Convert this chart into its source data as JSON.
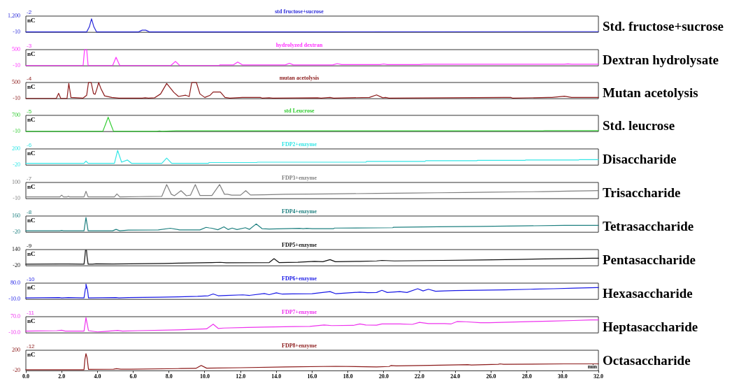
{
  "chart_data": [
    {
      "type": "line",
      "title": "std fructose+sucrose",
      "ylabel": "nC",
      "annotations": [
        "-2",
        "Std. fructose+sucrose"
      ],
      "color": "#2b2bd9",
      "marker": "none",
      "grid": false,
      "tick_labels": "y",
      "xlim": [
        0,
        32
      ],
      "ylim": [
        -10,
        1200
      ],
      "yticks": [
        {
          "value": 1200,
          "label": "1,200"
        },
        -10
      ],
      "x": [
        0,
        3.4,
        3.55,
        3.67,
        3.8,
        3.95,
        6.3,
        6.5,
        6.7,
        6.9,
        12.2,
        28.9,
        32
      ],
      "values": [
        20,
        20,
        400,
        1000,
        400,
        20,
        20,
        150,
        150,
        20,
        20,
        40,
        40
      ]
    },
    {
      "type": "line",
      "title": "hydrolyzed dextran",
      "ylabel": "nC",
      "annotations": [
        "-3",
        "Dextran hydrolysate"
      ],
      "color": "#ff33ff",
      "marker": "none",
      "grid": false,
      "tick_labels": "y",
      "xlim": [
        0,
        32
      ],
      "ylim": [
        -10,
        500
      ],
      "yticks": [
        500,
        -10
      ],
      "x": [
        0,
        3.2,
        3.28,
        3.33,
        3.4,
        3.48,
        4.85,
        5.04,
        5.25,
        8.1,
        8.36,
        8.6,
        10.8,
        10.85,
        11.6,
        11.84,
        12.1,
        14.5,
        14.73,
        14.95,
        17.15,
        17.4,
        17.65,
        19.8,
        20.0,
        20.2,
        22.0,
        22.25,
        22.5,
        28.7,
        28.9,
        29.1,
        30.1,
        30.3,
        30.5,
        30.8,
        32
      ],
      "values": [
        0,
        0,
        500,
        500,
        500,
        0,
        0,
        260,
        0,
        0,
        130,
        0,
        0,
        20,
        20,
        110,
        20,
        20,
        70,
        20,
        20,
        60,
        30,
        30,
        50,
        30,
        30,
        40,
        40,
        40,
        40,
        40,
        40,
        50,
        40,
        40,
        40
      ]
    },
    {
      "type": "line",
      "title": "mutan acetolysis",
      "ylabel": "nC",
      "annotations": [
        "-4",
        "Mutan acetolysis"
      ],
      "color": "#8b1a1a",
      "marker": "none",
      "grid": false,
      "tick_labels": "y",
      "xlim": [
        0,
        32
      ],
      "ylim": [
        -10,
        500
      ],
      "yticks": [
        500,
        -10
      ],
      "x": [
        0,
        1.7,
        1.83,
        1.95,
        2.3,
        2.4,
        2.52,
        3.2,
        3.4,
        3.5,
        3.65,
        3.78,
        3.87,
        3.97,
        4.07,
        4.2,
        4.4,
        4.8,
        5.2,
        6.5,
        6.67,
        6.85,
        7.2,
        7.53,
        7.87,
        8.27,
        8.53,
        8.93,
        9.13,
        9.27,
        9.53,
        9.73,
        10.0,
        10.3,
        10.47,
        10.87,
        11.13,
        11.4,
        12.1,
        13.1,
        13.2,
        13.6,
        13.8,
        16.3,
        16.5,
        17.0,
        17.2,
        19.2,
        19.6,
        19.95,
        20.1,
        20.3,
        26.7,
        27.1,
        27.2,
        29.2,
        29.4,
        30.1,
        30.5,
        32
      ],
      "values": [
        0,
        0,
        160,
        0,
        0,
        470,
        30,
        10,
        100,
        500,
        500,
        150,
        130,
        300,
        500,
        300,
        80,
        30,
        10,
        10,
        20,
        10,
        20,
        140,
        470,
        190,
        60,
        100,
        60,
        500,
        500,
        140,
        30,
        100,
        200,
        200,
        30,
        10,
        30,
        30,
        10,
        20,
        10,
        20,
        10,
        30,
        10,
        30,
        110,
        20,
        30,
        10,
        30,
        30,
        10,
        30,
        30,
        70,
        30,
        30
      ]
    },
    {
      "type": "line",
      "title": "std Leucrose",
      "ylabel": "nC",
      "annotations": [
        "-5",
        "Std. leucrose"
      ],
      "color": "#33cc33",
      "marker": "none",
      "grid": false,
      "tick_labels": "y",
      "xlim": [
        0,
        32
      ],
      "ylim": [
        -10,
        700
      ],
      "yticks": [
        700,
        -10
      ],
      "x": [
        0,
        4.3,
        4.45,
        4.6,
        4.75,
        4.9,
        7.3,
        7.47,
        7.6,
        8.4,
        28.9,
        29.0,
        32
      ],
      "values": [
        0,
        0,
        300,
        620,
        300,
        0,
        0,
        20,
        0,
        20,
        20,
        30,
        30
      ]
    },
    {
      "type": "line",
      "title": "FDP2+enzyme",
      "ylabel": "nC",
      "annotations": [
        "-6",
        "Disaccharide"
      ],
      "color": "#33e6e6",
      "marker": "none",
      "grid": false,
      "tick_labels": "y",
      "xlim": [
        0,
        32
      ],
      "ylim": [
        -20,
        200
      ],
      "yticks": [
        200,
        -20
      ],
      "x": [
        0,
        3.25,
        3.36,
        3.48,
        4.95,
        5.13,
        5.35,
        5.67,
        5.9,
        7.6,
        7.87,
        8.15,
        10.2,
        10.25,
        12.9,
        12.95,
        16.1,
        16.15,
        19.0,
        19.05,
        22.3,
        22.35,
        25.2,
        25.25,
        27.9,
        27.95,
        30.9,
        30.95,
        32
      ],
      "values": [
        5,
        5,
        35,
        5,
        5,
        180,
        20,
        50,
        5,
        5,
        75,
        5,
        5,
        15,
        15,
        20,
        20,
        20,
        20,
        30,
        30,
        40,
        40,
        45,
        45,
        50,
        50,
        55,
        55
      ]
    },
    {
      "type": "line",
      "title": "FDP3+enzyme",
      "ylabel": "nC",
      "annotations": [
        "-7",
        "Trisaccharide"
      ],
      "color": "#808080",
      "marker": "none",
      "grid": false,
      "tick_labels": "y",
      "xlim": [
        0,
        32
      ],
      "ylim": [
        -10,
        100
      ],
      "yticks": [
        100,
        -10
      ],
      "x": [
        0,
        1.9,
        2.0,
        2.1,
        2.3,
        2.37,
        2.45,
        3.25,
        3.36,
        3.48,
        4.95,
        5.09,
        5.25,
        6.33,
        7.6,
        7.87,
        8.13,
        8.3,
        8.67,
        8.97,
        9.2,
        9.47,
        9.73,
        10.4,
        10.83,
        11.1,
        11.27,
        11.5,
        12.0,
        12.29,
        12.55,
        13.3,
        14.5,
        17,
        19.6,
        21.6,
        23.0,
        24.5,
        26.0,
        27.5,
        28.9,
        30.3,
        31.6,
        32
      ],
      "values": [
        2,
        2,
        14,
        2,
        2,
        6,
        2,
        2,
        40,
        2,
        2,
        22,
        2,
        4,
        6,
        86,
        20,
        10,
        44,
        10,
        14,
        86,
        12,
        12,
        86,
        20,
        20,
        14,
        14,
        44,
        15,
        16,
        20,
        22,
        26,
        28,
        30,
        32,
        34,
        36,
        38,
        41,
        44,
        45
      ]
    },
    {
      "type": "line",
      "title": "FDP4+enzyme",
      "ylabel": "nC",
      "annotations": [
        "-8",
        "Tetrasaccharide"
      ],
      "color": "#1f8080",
      "marker": "none",
      "grid": false,
      "tick_labels": "y",
      "xlim": [
        0,
        32
      ],
      "ylim": [
        -20,
        160
      ],
      "yticks": [
        160,
        -20
      ],
      "x": [
        0,
        1.9,
        2.0,
        2.1,
        3.25,
        3.36,
        3.48,
        4.85,
        5.04,
        5.25,
        5.73,
        7.4,
        8.07,
        8.6,
        9.73,
        10.07,
        10.25,
        10.4,
        10.73,
        11.07,
        11.3,
        11.53,
        11.8,
        12.27,
        12.5,
        12.87,
        13.2,
        13.6,
        15.3,
        15.5,
        15.7,
        16.0,
        17.2,
        17.25,
        20.5,
        20.55,
        23.0,
        25.4,
        27.7,
        30.1,
        32
      ],
      "values": [
        -4,
        -4,
        0,
        -4,
        -4,
        144,
        -4,
        -4,
        12,
        -4,
        4,
        6,
        24,
        6,
        6,
        34,
        28,
        24,
        8,
        40,
        10,
        26,
        10,
        30,
        12,
        72,
        20,
        16,
        24,
        20,
        24,
        20,
        20,
        26,
        30,
        35,
        40,
        44,
        50,
        56,
        56
      ]
    },
    {
      "type": "line",
      "title": "FDP5+enzyme",
      "ylabel": "nC",
      "annotations": [
        "-9",
        "Pentasaccharide"
      ],
      "color": "#111111",
      "marker": "none",
      "grid": false,
      "tick_labels": "y",
      "xlim": [
        0,
        32
      ],
      "ylim": [
        -20,
        140
      ],
      "yticks": [
        140,
        -20
      ],
      "x": [
        0,
        1.87,
        2.4,
        3.25,
        3.3,
        3.33,
        3.39,
        3.42,
        3.48,
        3.73,
        3.93,
        4.87,
        7.73,
        8.67,
        10.4,
        10.87,
        11.2,
        13.6,
        13.87,
        14.15,
        15.2,
        16.13,
        16.6,
        17.0,
        17.3,
        18.67,
        19.6,
        19.9,
        20.6,
        23.3,
        25.4,
        27.5,
        29.6,
        31.7,
        32
      ],
      "values": [
        -4,
        -2,
        -2,
        -4,
        70,
        133,
        133,
        70,
        -4,
        -4,
        0,
        -2,
        3,
        7,
        12,
        14,
        10,
        12,
        50,
        12,
        15,
        24,
        20,
        41,
        20,
        24,
        28,
        33,
        28,
        33,
        38,
        43,
        49,
        54,
        54
      ]
    },
    {
      "type": "line",
      "title": "FDP6+enzyme",
      "ylabel": "nC",
      "annotations": [
        "-10",
        "Hexasaccharide"
      ],
      "color": "#1a1ae6",
      "marker": "none",
      "grid": false,
      "tick_labels": "y",
      "xlim": [
        0,
        32
      ],
      "ylim": [
        -10,
        80
      ],
      "yticks": [
        {
          "value": 80,
          "label": "80.0"
        },
        {
          "value": -10,
          "label": "-10.0"
        }
      ],
      "x": [
        0,
        1.87,
        2.0,
        2.37,
        3.25,
        3.33,
        3.36,
        3.45,
        3.5,
        5.04,
        5.2,
        5.73,
        7.47,
        8.53,
        9.6,
        10.2,
        10.47,
        10.75,
        11.2,
        12.13,
        12.5,
        13.33,
        13.6,
        14.0,
        14.33,
        14.9,
        16.0,
        17.0,
        17.33,
        18.67,
        19.1,
        19.6,
        19.9,
        20.2,
        20.9,
        21.3,
        21.9,
        22.2,
        22.5,
        22.9,
        23.4,
        24.0,
        26.8,
        28.2,
        29.5,
        30.7,
        31.9,
        32
      ],
      "values": [
        -2,
        0,
        -2,
        0,
        -2,
        50,
        75,
        40,
        -2,
        0,
        -2,
        0,
        2,
        4,
        7,
        10,
        20,
        10,
        12,
        15,
        12,
        22,
        16,
        26,
        19,
        20,
        21,
        33,
        21,
        30,
        27,
        28,
        40,
        28,
        33,
        28,
        49,
        37,
        46,
        35,
        37,
        39,
        43,
        46,
        49,
        52,
        55,
        55
      ]
    },
    {
      "type": "line",
      "title": "FDP7+enzyme",
      "ylabel": "nC",
      "annotations": [
        "-11",
        "Heptasaccharide"
      ],
      "color": "#ee33ee",
      "marker": "none",
      "grid": false,
      "tick_labels": "y",
      "xlim": [
        0,
        32
      ],
      "ylim": [
        -10,
        70
      ],
      "yticks": [
        {
          "value": 70,
          "label": "70.0"
        },
        {
          "value": -10,
          "label": "-10.0"
        }
      ],
      "x": [
        0,
        1.73,
        2.0,
        2.2,
        3.25,
        3.36,
        3.5,
        4.0,
        4.4,
        5.13,
        5.4,
        6.27,
        8.53,
        10.1,
        10.47,
        10.75,
        11.07,
        12.4,
        13.33,
        15.0,
        15.87,
        16.67,
        17.1,
        18.3,
        18.67,
        19.0,
        19.6,
        19.9,
        20.9,
        21.6,
        22.0,
        22.5,
        23.4,
        23.75,
        24.1,
        24.6,
        25.4,
        25.9,
        27.3,
        28.4,
        29.3,
        30.6,
        31.6,
        32
      ],
      "values": [
        -1,
        1,
        3,
        -1,
        -1,
        65,
        1,
        -5,
        -3,
        2,
        -1,
        1,
        5,
        10,
        33,
        12,
        14,
        17,
        19,
        21,
        22,
        29,
        26,
        27,
        34,
        29,
        28,
        34,
        34,
        32,
        42,
        36,
        36,
        34,
        46,
        45,
        40,
        40,
        44,
        46,
        48,
        51,
        54,
        54
      ]
    },
    {
      "type": "line",
      "title": "FDP8+enzyme",
      "ylabel": "nC",
      "xlabel": "min",
      "annotations": [
        "-12",
        "Octasaccharide"
      ],
      "color": "#8b1a1a",
      "marker": "none",
      "grid": false,
      "xlim": [
        0,
        32
      ],
      "xticks": [
        {
          "value": 0,
          "label": "0.0"
        },
        {
          "value": 2,
          "label": "2.0"
        },
        {
          "value": 4,
          "label": "4.0"
        },
        {
          "value": 6,
          "label": "6.0"
        },
        {
          "value": 8,
          "label": "8.0"
        },
        {
          "value": 10,
          "label": "10.0"
        },
        {
          "value": 12,
          "label": "12.0"
        },
        {
          "value": 14,
          "label": "14.0"
        },
        {
          "value": 16,
          "label": "16.0"
        },
        {
          "value": 18,
          "label": "18.0"
        },
        {
          "value": 20,
          "label": "20.0"
        },
        {
          "value": 22,
          "label": "22.0"
        },
        {
          "value": 24,
          "label": "24.0"
        },
        {
          "value": 26,
          "label": "26.0"
        },
        {
          "value": 28,
          "label": "28.0"
        },
        {
          "value": 30,
          "label": "30.0"
        },
        {
          "value": 32,
          "label": "32.0"
        }
      ],
      "ylim": [
        -20,
        200
      ],
      "yticks": [
        200,
        -20
      ],
      "x": [
        0,
        3.25,
        3.3,
        3.36,
        3.42,
        3.5,
        4.9,
        5.07,
        5.3,
        5.87,
        8.67,
        9.5,
        9.8,
        10.1,
        12.0,
        14.53,
        17.33,
        19.6,
        20.3,
        20.4,
        20.7,
        22.6,
        24.7,
        24.9,
        26.4,
        26.5,
        26.7,
        30.1,
        32
      ],
      "values": [
        -8,
        -8,
        100,
        164,
        120,
        -5,
        -3,
        2,
        -3,
        -3,
        4,
        6,
        37,
        8,
        13,
        21,
        28,
        22,
        26,
        36,
        32,
        38,
        45,
        42,
        49,
        54,
        49,
        54,
        54
      ]
    }
  ]
}
